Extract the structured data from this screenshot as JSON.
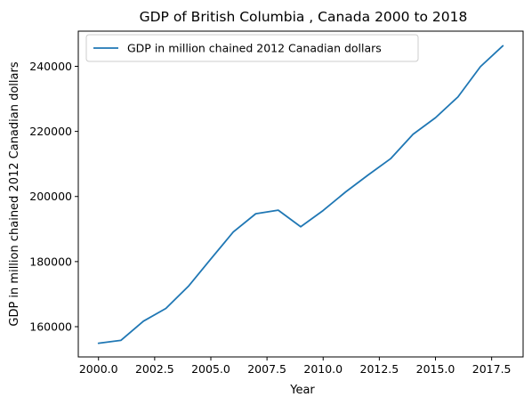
{
  "chart_data": {
    "type": "line",
    "title": "GDP of British Columbia , Canada 2000 to 2018",
    "xlabel": "Year",
    "ylabel": "GDP in million chained 2012 Canadian dollars",
    "xlim": [
      1999.1,
      2018.9
    ],
    "ylim": [
      150700,
      250800
    ],
    "x_ticks": [
      2000.0,
      2002.5,
      2005.0,
      2007.5,
      2010.0,
      2012.5,
      2015.0,
      2017.5
    ],
    "x_tick_labels": [
      "2000.0",
      "2002.5",
      "2005.0",
      "2007.5",
      "2010.0",
      "2012.5",
      "2015.0",
      "2017.5"
    ],
    "y_ticks": [
      160000,
      180000,
      200000,
      220000,
      240000
    ],
    "y_tick_labels": [
      "160000",
      "180000",
      "200000",
      "220000",
      "240000"
    ],
    "grid": false,
    "legend_position": "top-left",
    "series": [
      {
        "name": "GDP in million chained 2012 Canadian dollars",
        "color": "#1f77b4",
        "x": [
          2000,
          2001,
          2002,
          2003,
          2004,
          2005,
          2006,
          2007,
          2008,
          2009,
          2010,
          2011,
          2012,
          2013,
          2014,
          2015,
          2016,
          2017,
          2018
        ],
        "y": [
          154900,
          155800,
          161700,
          165600,
          172400,
          180800,
          189100,
          194700,
          195800,
          190700,
          195700,
          201400,
          206600,
          211600,
          219100,
          224200,
          230600,
          239900,
          246300
        ]
      }
    ]
  }
}
